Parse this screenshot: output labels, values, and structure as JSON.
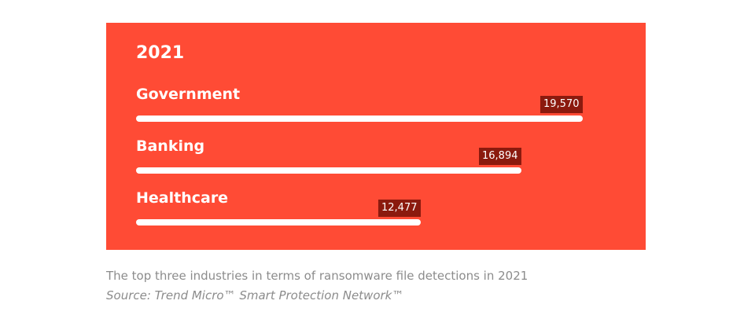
{
  "chart_data": {
    "type": "bar",
    "orientation": "horizontal",
    "title": "2021",
    "categories": [
      "Government",
      "Banking",
      "Healthcare"
    ],
    "values": [
      19570,
      16894,
      12477
    ],
    "value_labels": [
      "19,570",
      "16,894",
      "12,477"
    ],
    "xlim": [
      0,
      19570
    ],
    "grid": false,
    "legend": "none"
  },
  "caption": "The top three industries in terms of ransomware file detections in 2021",
  "source": "Source: Trend Micro™ Smart Protection Network™",
  "colors": {
    "panel_bg": "#ff4b35",
    "bar": "#ffffff",
    "value_label_bg": "#8b1a0e",
    "caption_text": "#8c8c8c"
  }
}
